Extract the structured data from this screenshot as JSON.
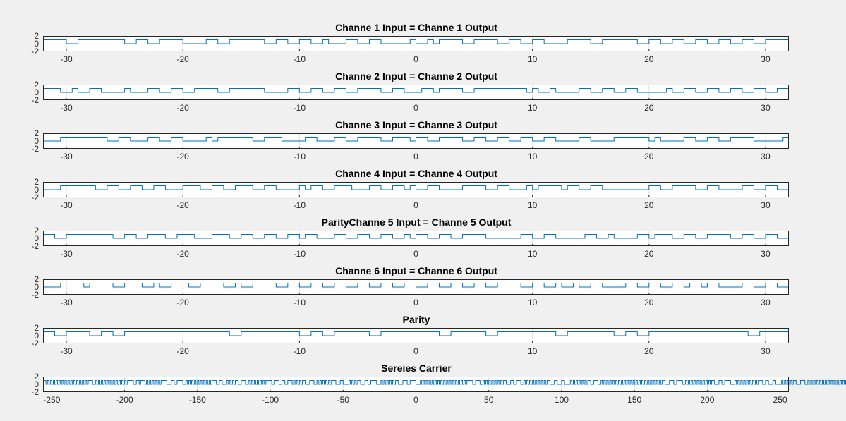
{
  "figure": {
    "background": "#f0f0f0",
    "axes_background": "#ffffff",
    "line_color": "#0072bd",
    "axis_color": "#262626"
  },
  "chart_data": [
    {
      "type": "line",
      "step": true,
      "grid": "x",
      "title": "Channe 1 Input = Channe 1 Output",
      "xlim": [
        -32,
        32
      ],
      "ylim": [
        -2,
        2
      ],
      "xticks": [
        -30,
        -20,
        -10,
        0,
        10,
        20,
        30
      ],
      "yticks": [
        2,
        0,
        -2
      ],
      "series": [
        {
          "start": -32,
          "level": 1,
          "transitions": [
            -30,
            -29,
            -25,
            -24,
            -23,
            -22,
            -20,
            -18,
            -17,
            -16,
            -13,
            -12,
            -11,
            -10,
            -9,
            -8,
            -7.5,
            -6,
            -5,
            -4,
            -3,
            -0.5,
            0,
            1,
            1.5,
            2,
            4,
            5,
            7,
            8,
            9,
            10,
            11,
            13,
            15,
            16,
            19,
            20,
            21,
            22,
            23,
            24,
            25,
            26,
            27,
            28,
            29,
            30
          ]
        }
      ]
    },
    {
      "type": "line",
      "step": true,
      "grid": "x",
      "title": "Channe 2 Input = Channe 2 Output",
      "xlim": [
        -32,
        32
      ],
      "ylim": [
        -2,
        2
      ],
      "xticks": [
        -30,
        -20,
        -10,
        0,
        10,
        20,
        30
      ],
      "yticks": [
        2,
        0,
        -2
      ],
      "series": [
        {
          "start": -32,
          "level": 1,
          "transitions": [
            -30.5,
            -29.5,
            -29,
            -28,
            -27,
            -25,
            -24.5,
            -23,
            -22,
            -21,
            -20,
            -19,
            -17,
            -16,
            -13,
            -11,
            -10,
            -9,
            -8,
            -7,
            -6,
            -5,
            -3,
            -2,
            -1,
            0.5,
            1.5,
            2,
            4,
            5,
            9.5,
            10,
            10.5,
            11.5,
            12,
            14,
            15,
            16,
            17,
            18,
            19,
            21.5,
            22,
            23,
            24,
            25,
            26,
            27,
            28,
            29,
            30,
            31
          ]
        }
      ]
    },
    {
      "type": "line",
      "step": true,
      "grid": "x",
      "title": "Channe 3 Input = Channe 3 Output",
      "xlim": [
        -32,
        32
      ],
      "ylim": [
        -2,
        2
      ],
      "xticks": [
        -30,
        -20,
        -10,
        0,
        10,
        20,
        30
      ],
      "yticks": [
        2,
        0,
        -2
      ],
      "series": [
        {
          "start": -32,
          "level": 0,
          "transitions": [
            -30.5,
            -26.5,
            -25.5,
            -24.5,
            -23,
            -22,
            -21,
            -20,
            -18,
            -17.5,
            -17,
            -14,
            -13,
            -11.5,
            -9.5,
            -8.5,
            -7,
            -6,
            -5,
            -3,
            -2,
            -0.5,
            0,
            1,
            2,
            4,
            5,
            6,
            7,
            8,
            9,
            10,
            11,
            12,
            14,
            15,
            17,
            20,
            20.5,
            21,
            23,
            24,
            25,
            26,
            27,
            29,
            31.5
          ]
        }
      ]
    },
    {
      "type": "line",
      "step": true,
      "grid": "x",
      "title": "Channe 4 Input = Channe 4 Output",
      "xlim": [
        -32,
        32
      ],
      "ylim": [
        -2,
        2
      ],
      "xticks": [
        -30,
        -20,
        -10,
        0,
        10,
        20,
        30
      ],
      "yticks": [
        2,
        0,
        -2
      ],
      "series": [
        {
          "start": -32,
          "level": 0,
          "transitions": [
            -30.5,
            -27.5,
            -26.5,
            -25.5,
            -24.5,
            -23.5,
            -22.5,
            -21.5,
            -20,
            -18.5,
            -17.5,
            -16.5,
            -15.5,
            -14,
            -13,
            -12,
            -10,
            -9.5,
            -9,
            -8,
            -7,
            -5.5,
            -4,
            -3,
            -2,
            -1,
            -0.5,
            0,
            1,
            2,
            4,
            6,
            7,
            8,
            9.5,
            10,
            10.5,
            12.5,
            13,
            14,
            15,
            16,
            20,
            21,
            22,
            24,
            25,
            26,
            28,
            29,
            30,
            31
          ]
        }
      ]
    },
    {
      "type": "line",
      "step": true,
      "grid": "x",
      "title": "ParityChanne 5 Input = Channe 5 Output",
      "xlim": [
        -32,
        32
      ],
      "ylim": [
        -2,
        2
      ],
      "xticks": [
        -30,
        -20,
        -10,
        0,
        10,
        20,
        30
      ],
      "yticks": [
        2,
        0,
        -2
      ],
      "series": [
        {
          "start": -32,
          "level": 1,
          "transitions": [
            -31,
            -30,
            -26,
            -25,
            -24,
            -23,
            -21.5,
            -20.5,
            -19,
            -17.5,
            -16,
            -15,
            -14,
            -13,
            -12,
            -11,
            -10,
            -9.5,
            -8.5,
            -7,
            -6,
            -5,
            -4,
            -3,
            -2,
            -1,
            -0.5,
            0,
            1,
            2,
            3,
            4,
            6,
            9,
            10,
            11,
            12,
            14.5,
            15.5,
            16.5,
            17,
            19,
            20,
            20.5,
            22,
            23,
            24,
            25,
            27,
            28,
            29,
            30,
            31
          ]
        }
      ]
    },
    {
      "type": "line",
      "step": true,
      "grid": "x",
      "title": "Channe 6 Input = Channe 6 Output",
      "xlim": [
        -32,
        32
      ],
      "ylim": [
        -2,
        2
      ],
      "xticks": [
        -30,
        -20,
        -10,
        0,
        10,
        20,
        30
      ],
      "yticks": [
        2,
        0,
        -2
      ],
      "series": [
        {
          "start": -32,
          "level": 0,
          "transitions": [
            -30.5,
            -28.5,
            -28,
            -26,
            -25,
            -23.5,
            -22.5,
            -22,
            -21,
            -19.5,
            -18.5,
            -16.5,
            -15.5,
            -15,
            -14,
            -12,
            -11,
            -10,
            -9,
            -8,
            -7,
            -6,
            -5,
            -4,
            -3,
            -2,
            -1,
            0,
            1,
            2,
            3,
            4,
            5,
            6,
            7,
            9,
            10,
            11,
            12,
            12.5,
            13.5,
            14,
            15,
            16,
            18,
            19,
            20,
            21,
            22,
            23,
            23.5,
            24.5,
            25,
            26,
            28,
            29,
            30,
            31
          ]
        }
      ]
    },
    {
      "type": "line",
      "step": true,
      "grid": "x",
      "title": "Parity",
      "xlim": [
        -32,
        32
      ],
      "ylim": [
        -2,
        2
      ],
      "xticks": [
        -30,
        -20,
        -10,
        0,
        10,
        20,
        30
      ],
      "yticks": [
        2,
        0,
        -2
      ],
      "series": [
        {
          "start": -32,
          "level": 1,
          "transitions": [
            -31,
            -30,
            -28,
            -27,
            -26,
            -25,
            -16,
            -15,
            -10,
            -9,
            -8,
            -7,
            -4,
            -3,
            2,
            3,
            6,
            7,
            12,
            13,
            17,
            18,
            19,
            20,
            28.5,
            29.5
          ]
        }
      ]
    },
    {
      "type": "line",
      "step": true,
      "grid": "x",
      "title": "Sereies Carrier",
      "xlim": [
        -256,
        256
      ],
      "ylim": [
        -2,
        2
      ],
      "xticks": [
        -250,
        -200,
        -150,
        -100,
        -50,
        0,
        50,
        100,
        150,
        200,
        250
      ],
      "yticks": [
        2,
        0,
        -2
      ],
      "series": [
        {
          "encoding": "bit-run-lengths",
          "start": -256,
          "first_level": 1,
          "runs": [
            2,
            1,
            1,
            1,
            1,
            1,
            1,
            1,
            1,
            1,
            1,
            1,
            1,
            1,
            1,
            1,
            1,
            1,
            1,
            1,
            1,
            1,
            1,
            1,
            1,
            1,
            1,
            1,
            1,
            1,
            3,
            2,
            1,
            1,
            1,
            1,
            1,
            1,
            1,
            1,
            1,
            1,
            1,
            1,
            1,
            1,
            1,
            1,
            1,
            1,
            1,
            1,
            1,
            1,
            4,
            2,
            2,
            1,
            3,
            1,
            1,
            1,
            1,
            1,
            1,
            1,
            1,
            1,
            1,
            1,
            4,
            3,
            2,
            2,
            4,
            2,
            1,
            1,
            1,
            1,
            1,
            1,
            1,
            1,
            1,
            1,
            1,
            1,
            1,
            1,
            1,
            1,
            1,
            1,
            3,
            2,
            2,
            3,
            1,
            1,
            1,
            1,
            1,
            1,
            2,
            2,
            3,
            2,
            1,
            1,
            1,
            1,
            1,
            1,
            1,
            1,
            1,
            1,
            1,
            1,
            4,
            2,
            3,
            2,
            2,
            2,
            3,
            1,
            1,
            1,
            1,
            1,
            1,
            1,
            2,
            3,
            3,
            2,
            1,
            1,
            1,
            1,
            1,
            1,
            1,
            1,
            1,
            1,
            3,
            3,
            2,
            4,
            1,
            1,
            1,
            1,
            1,
            1,
            2,
            3,
            2,
            2,
            4,
            3,
            1,
            1,
            1,
            1,
            1,
            1,
            1,
            1,
            1,
            1,
            2,
            3,
            3,
            2,
            4,
            3,
            1,
            1,
            1,
            1,
            1,
            1,
            1,
            1,
            1,
            1,
            1,
            1,
            1,
            1,
            1,
            1,
            1,
            1,
            1,
            1,
            1,
            1,
            1,
            1,
            1,
            1,
            1,
            1,
            1,
            1,
            1,
            1,
            4,
            2,
            3,
            2,
            1,
            1,
            1,
            1,
            1,
            1,
            1,
            1,
            1,
            1,
            1,
            1,
            1,
            1,
            2,
            3,
            2,
            2,
            3,
            2,
            1,
            1,
            1,
            1,
            1,
            1,
            1,
            1,
            1,
            1,
            1,
            1,
            1,
            1,
            1,
            1,
            2,
            3,
            2,
            3,
            2,
            4,
            1,
            1,
            1,
            1,
            1,
            1,
            1,
            1,
            1,
            1,
            1,
            1,
            2,
            2,
            3,
            2,
            1,
            1,
            1,
            1,
            1,
            1,
            1,
            1,
            1,
            1,
            1,
            1,
            1,
            1,
            1,
            1,
            1,
            1,
            1,
            1,
            1,
            1,
            1,
            1,
            1,
            1,
            1,
            1,
            1,
            1,
            1,
            1,
            1,
            1,
            1,
            1,
            1,
            1,
            1,
            1,
            1,
            1,
            2,
            3,
            3,
            2,
            4,
            2,
            1,
            1,
            1,
            1,
            1,
            1,
            1,
            1,
            1,
            1,
            1,
            1,
            1,
            1,
            1,
            1,
            1,
            1,
            2,
            3,
            2,
            2,
            4,
            3,
            1,
            1,
            1,
            1,
            1,
            1,
            1,
            1,
            1,
            1,
            1,
            1,
            1,
            1,
            1,
            1,
            3,
            2,
            2,
            3,
            2,
            4,
            1,
            1,
            1,
            1,
            1,
            1,
            1,
            1,
            2,
            3,
            3,
            2,
            1,
            1,
            1,
            1,
            1,
            1,
            1,
            1,
            1,
            1,
            1,
            1,
            1,
            1,
            1,
            1,
            1,
            1,
            1,
            1,
            1,
            1,
            1,
            1,
            1,
            1,
            1,
            1,
            1,
            1,
            1,
            1,
            1,
            1,
            1,
            1,
            1,
            1,
            1,
            1,
            1,
            1,
            1,
            1,
            1,
            1,
            1,
            1,
            1,
            1,
            1,
            1,
            1,
            1,
            1,
            1,
            1,
            1,
            2,
            2,
            3,
            2,
            4,
            3,
            1,
            1,
            1,
            1,
            1,
            1,
            1,
            1,
            1,
            1,
            1,
            1,
            1,
            1,
            1,
            1,
            1,
            1,
            1,
            1,
            1,
            1,
            1,
            1,
            1,
            1,
            1,
            1,
            1,
            1,
            1,
            1,
            1,
            1,
            1,
            1,
            1,
            1
          ]
        }
      ]
    }
  ]
}
